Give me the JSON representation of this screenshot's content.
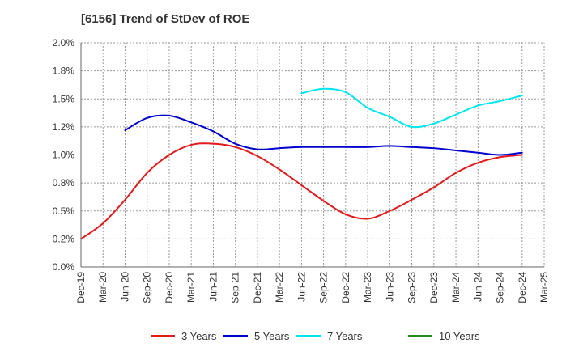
{
  "chart_data": {
    "type": "line",
    "title": "[6156]  Trend of StDev of ROE",
    "xlabel": "",
    "ylabel": "",
    "x_ticks": [
      "Dec-19",
      "Mar-20",
      "Jun-20",
      "Sep-20",
      "Dec-20",
      "Mar-21",
      "Jun-21",
      "Sep-21",
      "Dec-21",
      "Mar-22",
      "Jun-22",
      "Sep-22",
      "Dec-22",
      "Mar-23",
      "Jun-23",
      "Sep-23",
      "Dec-23",
      "Mar-24",
      "Jun-24",
      "Sep-24",
      "Dec-24",
      "Mar-25"
    ],
    "y_ticks": [
      "0.0%",
      "0.2%",
      "0.5%",
      "0.8%",
      "1.0%",
      "1.2%",
      "1.5%",
      "1.8%",
      "2.0%"
    ],
    "ylim": [
      0,
      2.0
    ],
    "grid": true,
    "legend_position": "bottom",
    "series": [
      {
        "name": "3 Years",
        "color": "#e31a1c",
        "points": [
          [
            "Dec-19",
            0.25
          ],
          [
            "Mar-20",
            0.39
          ],
          [
            "Jun-20",
            0.6
          ],
          [
            "Sep-20",
            0.84
          ],
          [
            "Dec-20",
            1.0
          ],
          [
            "Mar-21",
            1.09
          ],
          [
            "Jun-21",
            1.1
          ],
          [
            "Sep-21",
            1.07
          ],
          [
            "Dec-21",
            0.99
          ],
          [
            "Mar-22",
            0.87
          ],
          [
            "Jun-22",
            0.73
          ],
          [
            "Sep-22",
            0.59
          ],
          [
            "Dec-22",
            0.47
          ],
          [
            "Mar-23",
            0.43
          ],
          [
            "Jun-23",
            0.5
          ],
          [
            "Sep-23",
            0.6
          ],
          [
            "Dec-23",
            0.71
          ],
          [
            "Mar-24",
            0.84
          ],
          [
            "Jun-24",
            0.93
          ],
          [
            "Sep-24",
            0.98
          ],
          [
            "Dec-24",
            1.0
          ]
        ]
      },
      {
        "name": "5 Years",
        "color": "#0000cd",
        "points": [
          [
            "Jun-20",
            1.22
          ],
          [
            "Sep-20",
            1.33
          ],
          [
            "Dec-20",
            1.35
          ],
          [
            "Mar-21",
            1.29
          ],
          [
            "Jun-21",
            1.21
          ],
          [
            "Sep-21",
            1.1
          ],
          [
            "Dec-21",
            1.05
          ],
          [
            "Mar-22",
            1.06
          ],
          [
            "Jun-22",
            1.07
          ],
          [
            "Sep-22",
            1.07
          ],
          [
            "Dec-22",
            1.07
          ],
          [
            "Mar-23",
            1.07
          ],
          [
            "Jun-23",
            1.08
          ],
          [
            "Sep-23",
            1.07
          ],
          [
            "Dec-23",
            1.06
          ],
          [
            "Mar-24",
            1.04
          ],
          [
            "Jun-24",
            1.02
          ],
          [
            "Sep-24",
            1.0
          ],
          [
            "Dec-24",
            1.02
          ]
        ]
      },
      {
        "name": "7 Years",
        "color": "#00e5ee",
        "points": [
          [
            "Jun-22",
            1.55
          ],
          [
            "Sep-22",
            1.59
          ],
          [
            "Dec-22",
            1.56
          ],
          [
            "Mar-23",
            1.42
          ],
          [
            "Jun-23",
            1.34
          ],
          [
            "Sep-23",
            1.25
          ],
          [
            "Dec-23",
            1.28
          ],
          [
            "Mar-24",
            1.36
          ],
          [
            "Jun-24",
            1.44
          ],
          [
            "Sep-24",
            1.48
          ],
          [
            "Dec-24",
            1.53
          ]
        ]
      },
      {
        "name": "10 Years",
        "color": "#228b22",
        "points": []
      }
    ]
  }
}
